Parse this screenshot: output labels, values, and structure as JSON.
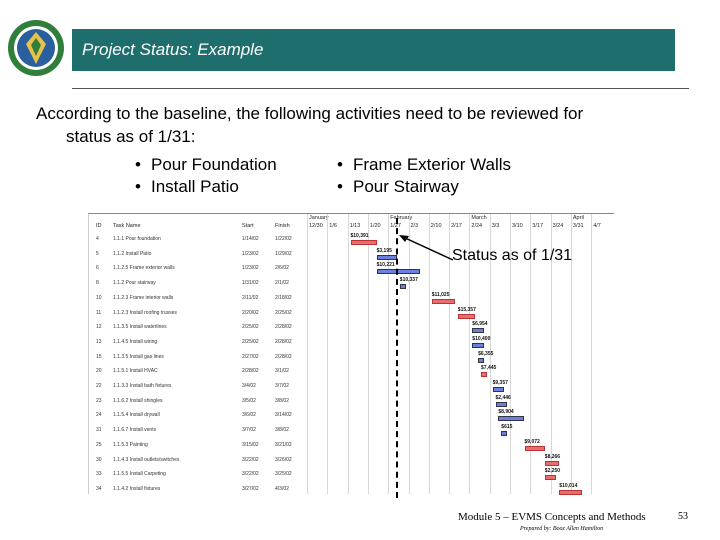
{
  "header": {
    "title": "Project Status: Example"
  },
  "intro": {
    "line1": "According to the baseline, the following activities need to be reviewed for",
    "line2": "status as of 1/31:"
  },
  "bullets": {
    "col1": [
      "Pour Foundation",
      "Install Patio"
    ],
    "col2": [
      "Frame Exterior Walls",
      "Pour Stairway"
    ]
  },
  "gantt": {
    "columns": {
      "id": "ID",
      "name": "Task Name",
      "start": "Start",
      "finish": "Finish"
    },
    "months": [
      "January",
      "February",
      "March",
      "April"
    ],
    "weeks": [
      "12/30",
      "1/6",
      "1/13",
      "1/20",
      "1/27",
      "2/3",
      "2/10",
      "2/17",
      "2/24",
      "3/3",
      "3/10",
      "3/17",
      "3/24",
      "3/31",
      "4/7"
    ],
    "rows": [
      {
        "id": "4",
        "name": "1.1.1 Pour foundation",
        "start": "1/14/02",
        "finish": "1/22/02",
        "bar": "red",
        "amount": "$10,391"
      },
      {
        "id": "5",
        "name": "1.1.2 Install Patio",
        "start": "1/23/02",
        "finish": "1/29/02",
        "bar": "blue",
        "amount": "$3,195"
      },
      {
        "id": "6",
        "name": "1.1.2.5 Frame exterior walls",
        "start": "1/23/02",
        "finish": "2/6/02",
        "bar": "blue",
        "amount": "$10,221"
      },
      {
        "id": "8",
        "name": "1.1.2 Pour stairway",
        "start": "1/31/02",
        "finish": "2/1/02",
        "bar": "blue",
        "amount": "$10,337"
      },
      {
        "id": "10",
        "name": "1.1.2.3 Frame interior walls",
        "start": "2/11/02",
        "finish": "2/18/02",
        "bar": "red",
        "amount": "$11,025"
      },
      {
        "id": "11",
        "name": "1.1.2.3 Install roofing trusses",
        "start": "2/20/02",
        "finish": "2/25/02",
        "bar": "red",
        "amount": "$15,357"
      },
      {
        "id": "12",
        "name": "1.1.3.5 Install waterlines",
        "start": "2/25/02",
        "finish": "2/28/02",
        "bar": "blue",
        "amount": "$6,954"
      },
      {
        "id": "13",
        "name": "1.1.4.5 Install wiring",
        "start": "2/25/02",
        "finish": "2/28/02",
        "bar": "blue",
        "amount": "$10,400"
      },
      {
        "id": "15",
        "name": "1.1.3.5 Install gas lines",
        "start": "2/27/02",
        "finish": "2/28/02",
        "bar": "blue",
        "amount": "$6,355"
      },
      {
        "id": "20",
        "name": "1.1.5.1 Install HVAC",
        "start": "2/28/02",
        "finish": "3/1/02",
        "bar": "red",
        "amount": "$7,445"
      },
      {
        "id": "22",
        "name": "1.1.3.3 Install bath fixtures",
        "start": "3/4/02",
        "finish": "3/7/02",
        "bar": "blue",
        "amount": "$9,357"
      },
      {
        "id": "23",
        "name": "1.1.6.2 Install shingles",
        "start": "3/5/02",
        "finish": "3/8/02",
        "bar": "blue",
        "amount": "$2,446"
      },
      {
        "id": "24",
        "name": "1.1.5.4 Install drywall",
        "start": "3/6/02",
        "finish": "3/14/02",
        "bar": "blue",
        "amount": "$8,904"
      },
      {
        "id": "31",
        "name": "1.1.6.7 Install vents",
        "start": "3/7/02",
        "finish": "3/8/02",
        "bar": "blue",
        "amount": "$615"
      },
      {
        "id": "25",
        "name": "1.1.5.3 Painting",
        "start": "3/15/02",
        "finish": "3/21/02",
        "bar": "red",
        "amount": "$9,072"
      },
      {
        "id": "30",
        "name": "1.1.4.3 Install outlets/switches",
        "start": "3/22/02",
        "finish": "3/26/02",
        "bar": "red",
        "amount": "$8,266"
      },
      {
        "id": "33",
        "name": "1.1.5.5 Install Carpeting",
        "start": "3/22/02",
        "finish": "3/25/02",
        "bar": "red",
        "amount": "$2,250"
      },
      {
        "id": "34",
        "name": "1.1.4.2 Install fixtures",
        "start": "3/27/02",
        "finish": "4/3/02",
        "bar": "red",
        "amount": "$10,014"
      }
    ]
  },
  "status": {
    "label": "Status as of 1/31"
  },
  "footer": {
    "module": "Module 5 – EVMS Concepts and Methods",
    "page": "53",
    "prepared": "Prepared by: Booz Allen Hamilton"
  },
  "colors": {
    "title_bar": "#1f6e6e",
    "bar_red": "#ec6b6b",
    "bar_blue": "#6b7fe0"
  },
  "icons": [
    "doe-seal-logo"
  ]
}
